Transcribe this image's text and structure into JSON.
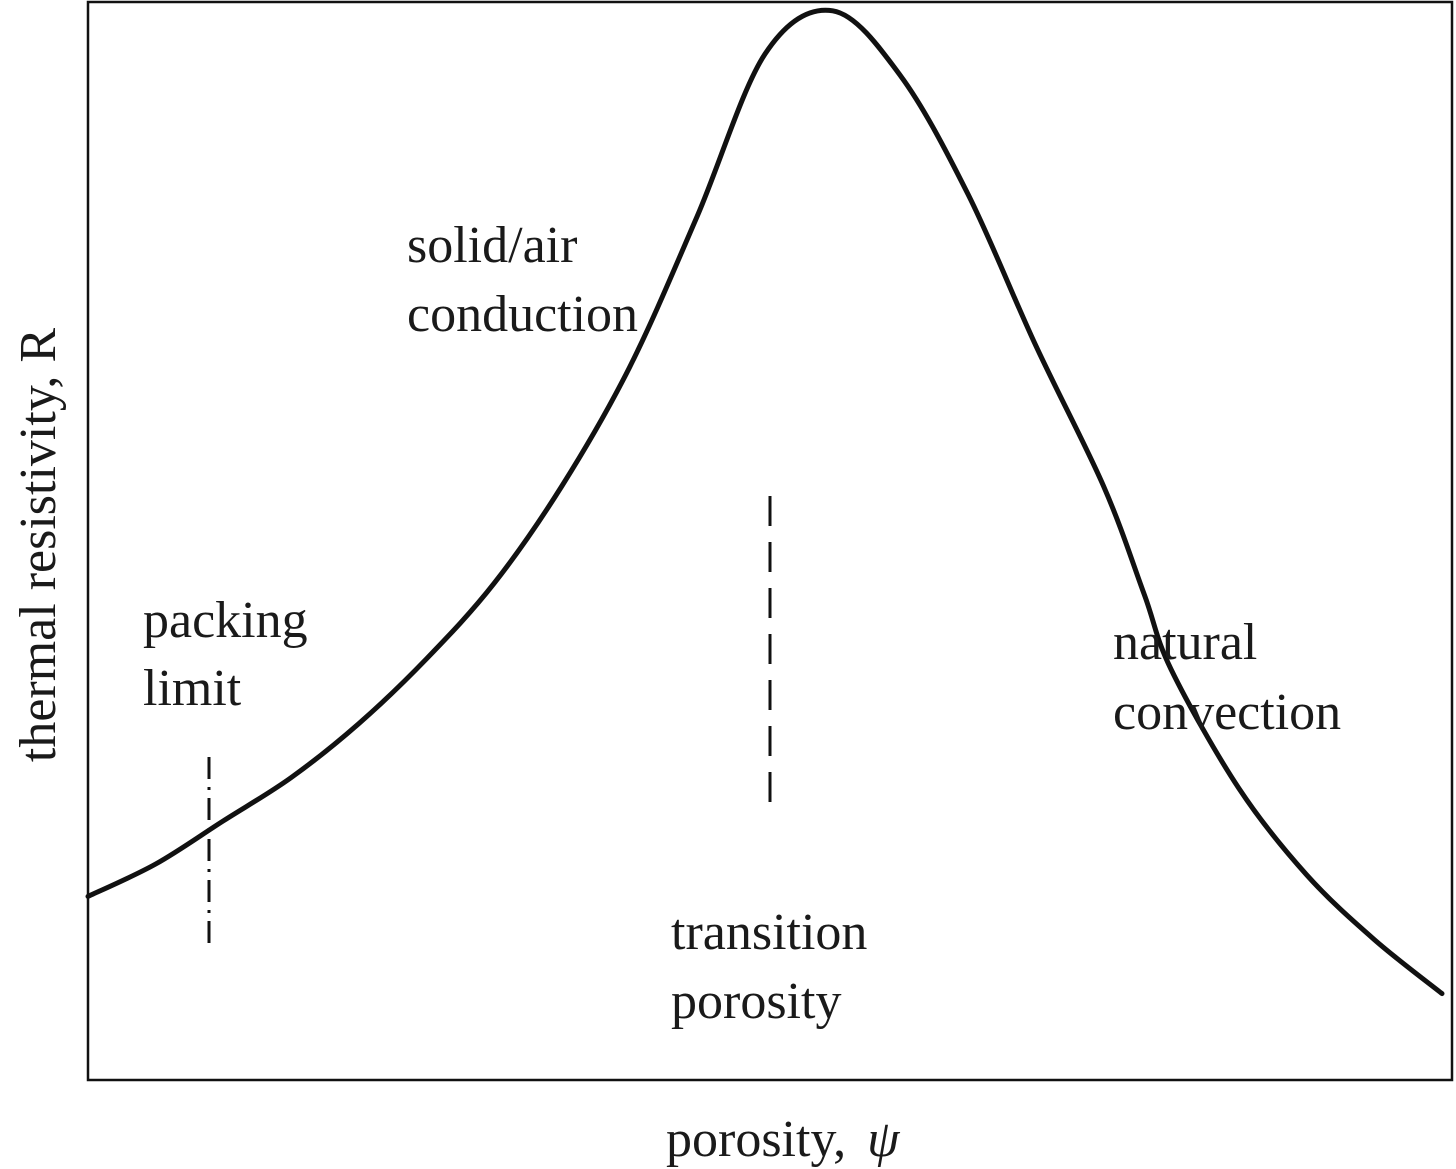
{
  "chart_data": {
    "type": "line",
    "xlabel": "porosity, ψ",
    "ylabel": "thermal resistivity, R",
    "grid": false,
    "legend": "none",
    "series": [
      {
        "x": [
          0.0,
          0.05,
          0.1,
          0.15,
          0.2,
          0.25,
          0.3,
          0.35,
          0.4,
          0.45,
          0.5,
          0.55,
          0.6,
          0.65,
          0.7,
          0.75,
          0.78,
          0.8,
          0.85,
          0.9,
          0.95,
          1.0
        ],
        "y": [
          0.17,
          0.2,
          0.24,
          0.28,
          0.33,
          0.39,
          0.46,
          0.55,
          0.66,
          0.8,
          0.95,
          0.99,
          0.93,
          0.82,
          0.68,
          0.55,
          0.45,
          0.38,
          0.27,
          0.19,
          0.13,
          0.08
        ],
        "color": "#111111"
      }
    ],
    "markers": [
      {
        "x": 0.09,
        "style": "dash-dot",
        "label_lines": [
          "packing",
          "limit"
        ]
      },
      {
        "x": 0.5,
        "style": "dashed",
        "label_lines": [
          "transition",
          "porosity"
        ]
      }
    ],
    "annotations": [
      {
        "lines": [
          "solid/air",
          "conduction"
        ]
      },
      {
        "lines": [
          "natural",
          "convection"
        ]
      }
    ]
  },
  "labels": {
    "xlabel_main": "porosity,",
    "xlabel_symbol": "ψ",
    "ylabel": "thermal resistivity, R",
    "packing_1": "packing",
    "packing_2": "limit",
    "transition_1": "transition",
    "transition_2": "porosity",
    "solid_1": "solid/air",
    "solid_2": "conduction",
    "natural_1": "natural",
    "natural_2": "convection"
  }
}
